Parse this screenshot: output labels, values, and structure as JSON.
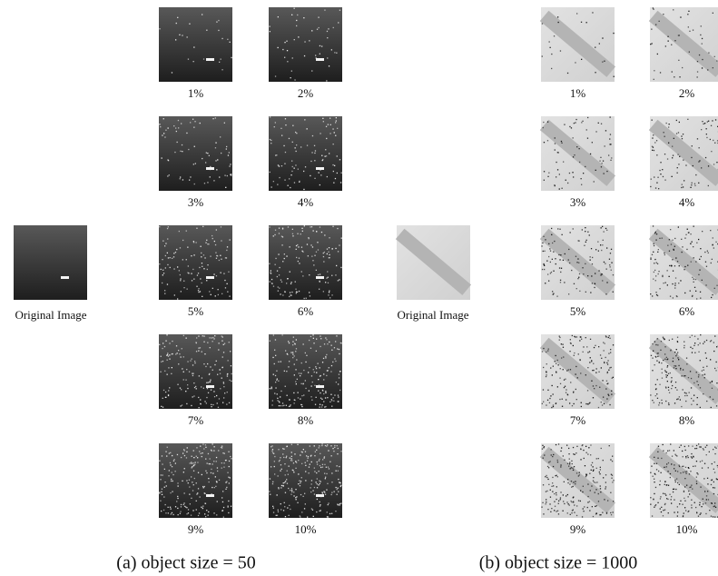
{
  "panels": [
    {
      "original_label": "Original Image",
      "labels": [
        "1%",
        "2%",
        "3%",
        "4%",
        "5%",
        "6%",
        "7%",
        "8%",
        "9%",
        "10%"
      ],
      "caption": "(a)  object size = 50"
    },
    {
      "original_label": "Original Image",
      "labels": [
        "1%",
        "2%",
        "3%",
        "4%",
        "5%",
        "6%",
        "7%",
        "8%",
        "9%",
        "10%"
      ],
      "caption": "(b)  object size = 1000"
    }
  ]
}
